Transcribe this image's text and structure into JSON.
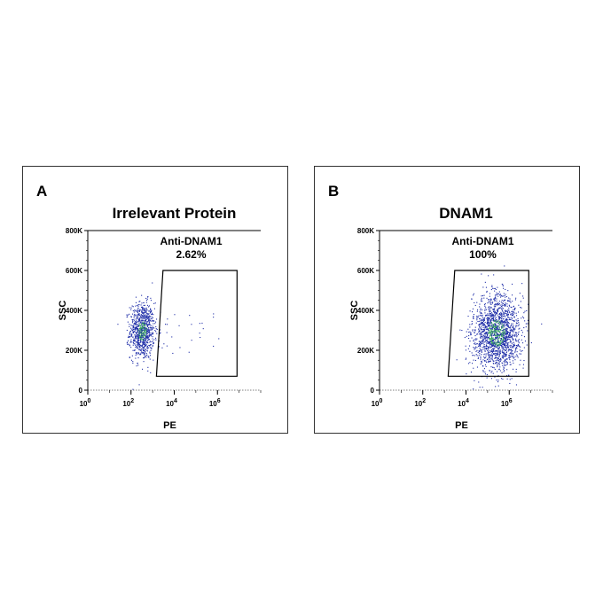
{
  "chart_data": [
    {
      "type": "scatter",
      "panel_letter": "A",
      "title": "Irrelevant Protein",
      "xlabel": "PE",
      "ylabel": "SSC",
      "x_scale": "log",
      "xlim": [
        1,
        100000000
      ],
      "ylim": [
        0,
        800000
      ],
      "x_ticks": [
        {
          "value": 1,
          "base": "10",
          "exp": "0"
        },
        {
          "value": 100,
          "base": "10",
          "exp": "2"
        },
        {
          "value": 10000,
          "base": "10",
          "exp": "4"
        },
        {
          "value": 1000000,
          "base": "10",
          "exp": "6"
        }
      ],
      "y_ticks": [
        {
          "value": 0,
          "label": "0"
        },
        {
          "value": 200000,
          "label": "200K"
        },
        {
          "value": 400000,
          "label": "400K"
        },
        {
          "value": 600000,
          "label": "600K"
        },
        {
          "value": 800000,
          "label": "800K"
        }
      ],
      "gate": {
        "name": "Anti-DNAM1",
        "percent": "2.62%",
        "vertices": [
          [
            3000,
            600000
          ],
          [
            8000000,
            600000
          ],
          [
            8000000,
            70000
          ],
          [
            1500,
            70000
          ]
        ]
      },
      "population": {
        "x_center_log10": 2.5,
        "x_spread_log10": 0.28,
        "y_center": 300000,
        "y_spread": 70000,
        "n_points": 900,
        "outliers": 35
      },
      "colors": {
        "points": "#1f2ea8",
        "dense": "#38a85a",
        "gate": "#000000"
      }
    },
    {
      "type": "scatter",
      "panel_letter": "B",
      "title": "DNAM1",
      "xlabel": "PE",
      "ylabel": "SSC",
      "x_scale": "log",
      "xlim": [
        1,
        100000000
      ],
      "ylim": [
        0,
        800000
      ],
      "x_ticks": [
        {
          "value": 1,
          "base": "10",
          "exp": "0"
        },
        {
          "value": 100,
          "base": "10",
          "exp": "2"
        },
        {
          "value": 10000,
          "base": "10",
          "exp": "4"
        },
        {
          "value": 1000000,
          "base": "10",
          "exp": "6"
        }
      ],
      "y_ticks": [
        {
          "value": 0,
          "label": "0"
        },
        {
          "value": 200000,
          "label": "200K"
        },
        {
          "value": 400000,
          "label": "400K"
        },
        {
          "value": 600000,
          "label": "600K"
        },
        {
          "value": 800000,
          "label": "800K"
        }
      ],
      "gate": {
        "name": "Anti-DNAM1",
        "percent": "100%",
        "vertices": [
          [
            3000,
            600000
          ],
          [
            8000000,
            600000
          ],
          [
            8000000,
            70000
          ],
          [
            1500,
            70000
          ]
        ]
      },
      "population": {
        "x_center_log10": 5.4,
        "x_spread_log10": 0.55,
        "y_center": 290000,
        "y_spread": 95000,
        "n_points": 1800,
        "outliers": 0
      },
      "colors": {
        "points": "#1f2ea8",
        "dense": "#38a85a",
        "gate": "#000000"
      }
    }
  ]
}
